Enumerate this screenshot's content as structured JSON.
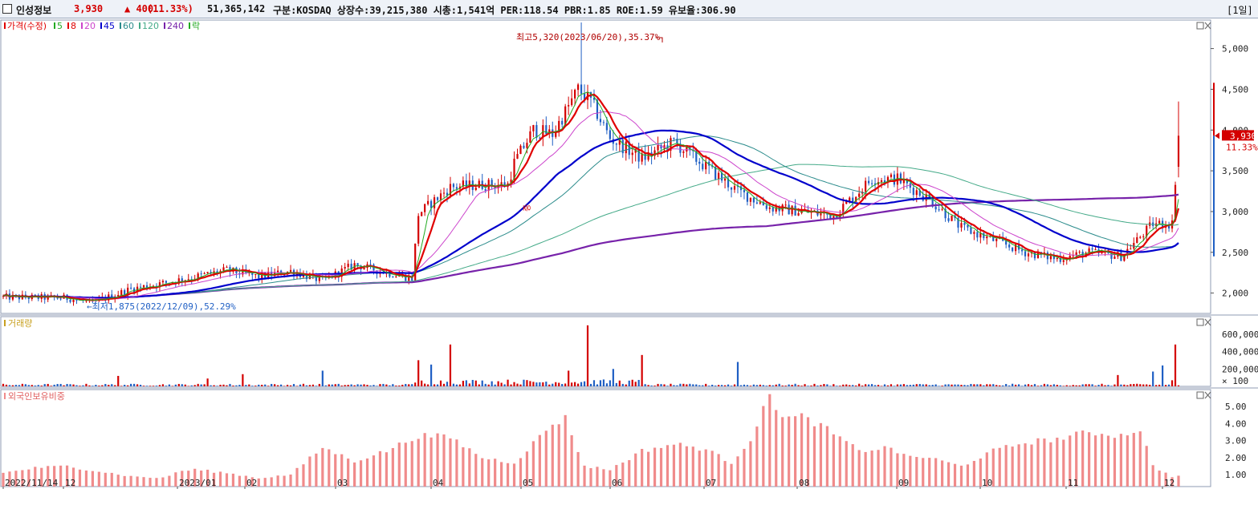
{
  "header": {
    "name": "인성정보",
    "price": "3,930",
    "change": "▲ 400",
    "change_pct": "(11.33%)",
    "volume": "51,365,142",
    "info": "구분:KOSDAQ 상장수:39,215,380 시총:1,541억 PER:118.54 PBR:1.85 ROE:1.59 유보율:306.90",
    "period": "[1일]"
  },
  "colors": {
    "up": "#d40000",
    "down": "#1f5fc4",
    "ma5": "#22aa22",
    "ma8": "#e00000",
    "ma20": "#cc44cc",
    "ma45": "#0000cc",
    "ma60": "#2a8b8b",
    "ma120": "#44aa88",
    "ma240": "#7722aa"
  },
  "chart_data": [
    {
      "type": "candlestick",
      "title": "가격(수정)",
      "legend": [
        "5",
        "8",
        "20",
        "45",
        "60",
        "120",
        "240",
        "락"
      ],
      "y_ticks": [
        "5,000",
        "4,500",
        "4,000",
        "3,500",
        "3,000",
        "2,500",
        "2,000"
      ],
      "ylim": [
        1750,
        5350
      ],
      "annotations": [
        "최고5,320(2023/06/20),35.37%",
        "최저1,875(2022/12/09),52.29%",
        "증"
      ],
      "last_price_label": "3,930",
      "last_pct_label": "11.33%",
      "approx_close_path": [
        [
          0,
          1950
        ],
        [
          20,
          1940
        ],
        [
          28,
          1880
        ],
        [
          40,
          2050
        ],
        [
          50,
          2120
        ],
        [
          60,
          2200
        ],
        [
          70,
          2280
        ],
        [
          80,
          2200
        ],
        [
          90,
          2270
        ],
        [
          100,
          2150
        ],
        [
          110,
          2350
        ],
        [
          118,
          2270
        ],
        [
          128,
          2180
        ],
        [
          130,
          2970
        ],
        [
          140,
          3300
        ],
        [
          150,
          3330
        ],
        [
          158,
          3330
        ],
        [
          160,
          3600
        ],
        [
          166,
          4000
        ],
        [
          172,
          3950
        ],
        [
          180,
          4500
        ],
        [
          184,
          4350
        ],
        [
          190,
          3900
        ],
        [
          200,
          3650
        ],
        [
          210,
          3850
        ],
        [
          220,
          3550
        ],
        [
          230,
          3250
        ],
        [
          240,
          3050
        ],
        [
          250,
          3000
        ],
        [
          260,
          2950
        ],
        [
          272,
          3400
        ],
        [
          280,
          3400
        ],
        [
          290,
          3150
        ],
        [
          300,
          2800
        ],
        [
          310,
          2650
        ],
        [
          320,
          2500
        ],
        [
          330,
          2420
        ],
        [
          340,
          2500
        ],
        [
          350,
          2450
        ],
        [
          360,
          2850
        ],
        [
          366,
          2850
        ],
        [
          368,
          3930
        ]
      ]
    },
    {
      "type": "bar",
      "title": "거래량",
      "y_ticks": [
        "600,000",
        "400,000",
        "200,000"
      ],
      "unit_label": "× 100",
      "ylim": [
        0,
        800000
      ]
    },
    {
      "type": "bar",
      "title": "외국인보유비중",
      "y_ticks": [
        "5.00",
        "4.00",
        "3.00",
        "2.00",
        "1.00"
      ],
      "ylim": [
        0.3,
        6.0
      ],
      "approx_path": [
        [
          0,
          1.1
        ],
        [
          10,
          1.4
        ],
        [
          20,
          1.5
        ],
        [
          30,
          1.2
        ],
        [
          40,
          0.9
        ],
        [
          50,
          0.8
        ],
        [
          55,
          1.2
        ],
        [
          60,
          1.3
        ],
        [
          70,
          1.1
        ],
        [
          80,
          0.8
        ],
        [
          90,
          1.0
        ],
        [
          100,
          2.6
        ],
        [
          110,
          1.8
        ],
        [
          120,
          2.4
        ],
        [
          130,
          3.3
        ],
        [
          140,
          3.2
        ],
        [
          150,
          2.0
        ],
        [
          160,
          1.7
        ],
        [
          172,
          4.0
        ],
        [
          176,
          4.3
        ],
        [
          182,
          1.5
        ],
        [
          190,
          1.3
        ],
        [
          200,
          2.4
        ],
        [
          210,
          2.8
        ],
        [
          220,
          2.5
        ],
        [
          228,
          1.7
        ],
        [
          234,
          3.1
        ],
        [
          240,
          5.6
        ],
        [
          245,
          4.3
        ],
        [
          250,
          4.4
        ],
        [
          255,
          4.0
        ],
        [
          260,
          3.4
        ],
        [
          268,
          2.4
        ],
        [
          278,
          2.6
        ],
        [
          282,
          2.1
        ],
        [
          290,
          2.0
        ],
        [
          300,
          1.5
        ],
        [
          310,
          2.4
        ],
        [
          320,
          2.9
        ],
        [
          330,
          3.1
        ],
        [
          340,
          3.5
        ],
        [
          350,
          3.3
        ],
        [
          356,
          3.7
        ],
        [
          360,
          1.5
        ],
        [
          366,
          0.9
        ]
      ]
    }
  ],
  "x_axis": {
    "labels": [
      "2022/11/14",
      "12",
      "2023/01",
      "02",
      "03",
      "04",
      "05",
      "06",
      "07",
      "08",
      "09",
      "10",
      "11",
      "12"
    ]
  }
}
